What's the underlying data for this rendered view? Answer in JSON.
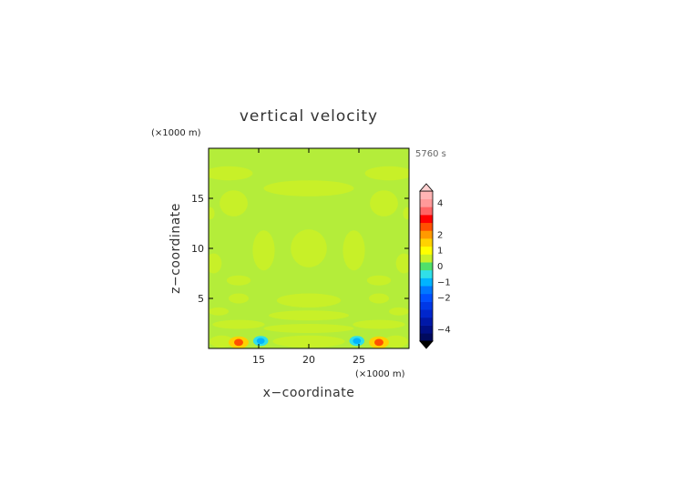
{
  "chart_data": {
    "type": "heatmap",
    "title": "vertical velocity",
    "time_label": "5760 s",
    "xlabel": "x−coordinate",
    "ylabel": "z−coordinate",
    "x_unit": "(×1000 m)",
    "y_unit": "(×1000 m)",
    "xlim": [
      10,
      30
    ],
    "ylim": [
      0,
      20
    ],
    "x_ticks": [
      15,
      20,
      25
    ],
    "y_ticks": [
      5,
      10,
      15
    ],
    "x_tick_labels": [
      "15",
      "20",
      "25"
    ],
    "y_tick_labels": [
      "5",
      "10",
      "15"
    ],
    "background_level": 0,
    "cells": [
      {
        "x": 12.0,
        "z": 17.5,
        "rx": 2.4,
        "rz": 0.7,
        "value": 0.5
      },
      {
        "x": 28.0,
        "z": 17.5,
        "rx": 2.4,
        "rz": 0.7,
        "value": 0.5
      },
      {
        "x": 20.0,
        "z": 16.0,
        "rx": 4.5,
        "rz": 0.8,
        "value": 0.5
      },
      {
        "x": 12.5,
        "z": 14.5,
        "rx": 1.4,
        "rz": 1.3,
        "value": 0.5
      },
      {
        "x": 27.5,
        "z": 14.5,
        "rx": 1.4,
        "rz": 1.3,
        "value": 0.5
      },
      {
        "x": 10.2,
        "z": 13.5,
        "rx": 0.4,
        "rz": 0.6,
        "value": 0.5
      },
      {
        "x": 29.8,
        "z": 13.5,
        "rx": 0.4,
        "rz": 0.6,
        "value": 0.5
      },
      {
        "x": 15.5,
        "z": 9.8,
        "rx": 1.1,
        "rz": 2.0,
        "value": 0.5
      },
      {
        "x": 20.0,
        "z": 10.0,
        "rx": 1.8,
        "rz": 1.9,
        "value": 0.5
      },
      {
        "x": 24.5,
        "z": 9.8,
        "rx": 1.1,
        "rz": 2.0,
        "value": 0.5
      },
      {
        "x": 10.5,
        "z": 8.5,
        "rx": 0.8,
        "rz": 1.0,
        "value": 0.5
      },
      {
        "x": 29.5,
        "z": 8.5,
        "rx": 0.8,
        "rz": 1.0,
        "value": 0.5
      },
      {
        "x": 13.0,
        "z": 6.8,
        "rx": 1.2,
        "rz": 0.5,
        "value": 0.5
      },
      {
        "x": 27.0,
        "z": 6.8,
        "rx": 1.2,
        "rz": 0.5,
        "value": 0.5
      },
      {
        "x": 13.0,
        "z": 5.0,
        "rx": 1.0,
        "rz": 0.5,
        "value": 0.5
      },
      {
        "x": 27.0,
        "z": 5.0,
        "rx": 1.0,
        "rz": 0.5,
        "value": 0.5
      },
      {
        "x": 20.0,
        "z": 4.8,
        "rx": 3.2,
        "rz": 0.7,
        "value": 0.5
      },
      {
        "x": 20.0,
        "z": 3.3,
        "rx": 4.0,
        "rz": 0.5,
        "value": 0.5
      },
      {
        "x": 11.0,
        "z": 3.7,
        "rx": 1.0,
        "rz": 0.4,
        "value": 0.5
      },
      {
        "x": 29.0,
        "z": 3.7,
        "rx": 1.0,
        "rz": 0.4,
        "value": 0.5
      },
      {
        "x": 13.0,
        "z": 2.4,
        "rx": 2.6,
        "rz": 0.45,
        "value": 0.5
      },
      {
        "x": 27.0,
        "z": 2.4,
        "rx": 2.6,
        "rz": 0.45,
        "value": 0.5
      },
      {
        "x": 20.0,
        "z": 2.0,
        "rx": 4.5,
        "rz": 0.45,
        "value": 0.5
      },
      {
        "x": 20.0,
        "z": 0.7,
        "rx": 3.6,
        "rz": 0.6,
        "value": 0.5
      },
      {
        "x": 11.3,
        "z": 0.7,
        "rx": 1.2,
        "rz": 0.6,
        "value": 0.5
      },
      {
        "x": 28.7,
        "z": 0.7,
        "rx": 1.2,
        "rz": 0.6,
        "value": 0.5
      },
      {
        "x": 13.0,
        "z": 0.6,
        "rx": 1.0,
        "rz": 0.6,
        "value": 1.5
      },
      {
        "x": 13.0,
        "z": 0.6,
        "rx": 0.45,
        "rz": 0.35,
        "value": 2.5
      },
      {
        "x": 27.0,
        "z": 0.6,
        "rx": 1.0,
        "rz": 0.6,
        "value": 1.5
      },
      {
        "x": 27.0,
        "z": 0.6,
        "rx": 0.45,
        "rz": 0.35,
        "value": 2.5
      },
      {
        "x": 15.2,
        "z": 0.75,
        "rx": 0.75,
        "rz": 0.5,
        "value": -0.5
      },
      {
        "x": 15.2,
        "z": 0.75,
        "rx": 0.4,
        "rz": 0.3,
        "value": -1.2
      },
      {
        "x": 24.8,
        "z": 0.75,
        "rx": 0.75,
        "rz": 0.5,
        "value": -0.5
      },
      {
        "x": 24.8,
        "z": 0.75,
        "rx": 0.4,
        "rz": 0.3,
        "value": -1.2
      }
    ],
    "colorbar": {
      "levels": [
        -4.5,
        -4.0,
        -3.5,
        -3.0,
        -2.5,
        -2.0,
        -1.5,
        -1.0,
        -0.5,
        0.0,
        0.5,
        1.0,
        1.5,
        2.0,
        2.5,
        3.0,
        3.5,
        4.0,
        4.5
      ],
      "colors": [
        "#000a5e",
        "#000f85",
        "#0018a8",
        "#0026cc",
        "#0038e6",
        "#0050ff",
        "#0078ff",
        "#00b4ff",
        "#30e0e8",
        "#50e06a",
        "#c8f028",
        "#ffff00",
        "#ffd200",
        "#ff9a00",
        "#ff5000",
        "#ff0000",
        "#ff6464",
        "#ff9a9a",
        "#ffb4b4"
      ],
      "tick_values": [
        4,
        2,
        1,
        0,
        -1,
        -2,
        -4
      ],
      "tick_labels": [
        "4",
        "2",
        "1",
        "0",
        "−1",
        "−2",
        "−4"
      ],
      "min_triangle_color": "#000000",
      "max_triangle_color": "#ffd0d0"
    }
  }
}
